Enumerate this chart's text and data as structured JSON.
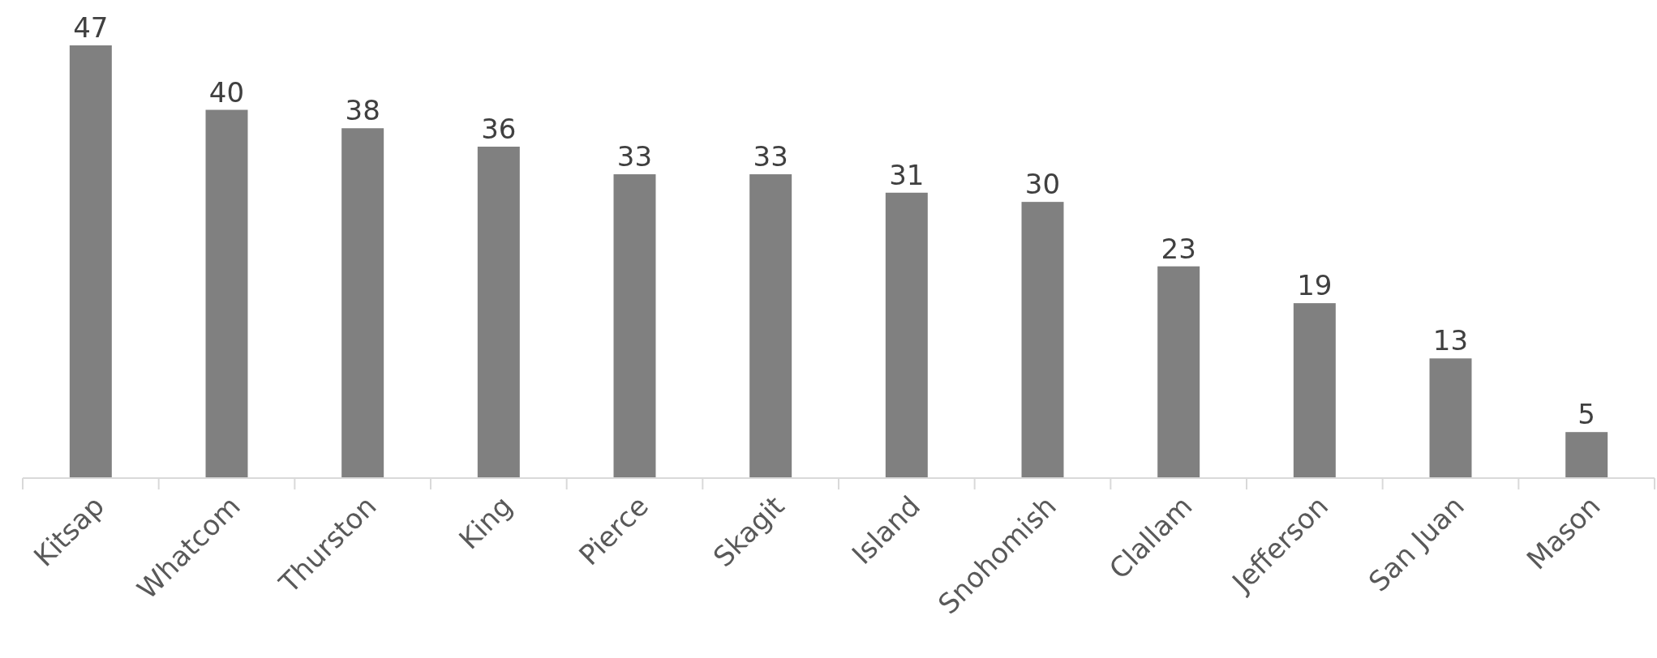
{
  "chart_data": {
    "type": "bar",
    "categories": [
      "Kitsap",
      "Whatcom",
      "Thurston",
      "King",
      "Pierce",
      "Skagit",
      "Island",
      "Snohomish",
      "Clallam",
      "Jefferson",
      "San Juan",
      "Mason"
    ],
    "values": [
      47,
      40,
      38,
      36,
      33,
      33,
      31,
      30,
      23,
      19,
      13,
      5
    ],
    "color": "#808080",
    "data_labels": true
  }
}
